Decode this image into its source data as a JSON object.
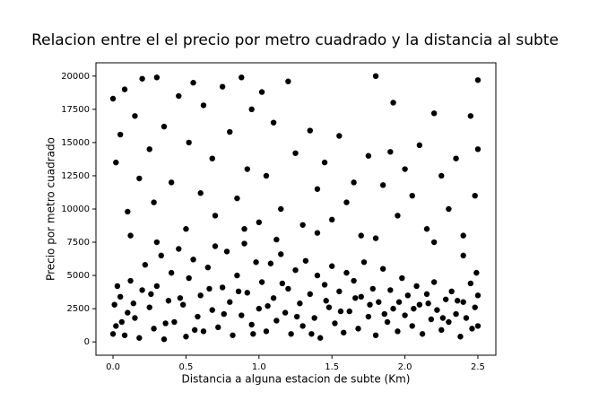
{
  "chart_data": {
    "type": "scatter",
    "title": "Relacion entre el el precio por metro cuadrado y la distancia al subte",
    "xlabel": "Distancia a alguna estacion de subte (Km)",
    "ylabel": "Precio por metro cuadrado",
    "color": "#000000",
    "xlim": [
      -0.117,
      2.623
    ],
    "ylim": [
      -1000,
      21000
    ],
    "xticks": [
      {
        "value": 0,
        "label": "0.0"
      },
      0.5,
      {
        "value": 1,
        "label": "1.0"
      },
      1.5,
      {
        "value": 2,
        "label": "2.0"
      },
      2.5
    ],
    "yticks": [
      0,
      2500,
      5000,
      7500,
      10000,
      12500,
      15000,
      17500,
      20000
    ],
    "x": [
      0.02,
      0.05,
      0.08,
      0.1,
      0.12,
      0.15,
      0.18,
      0.2,
      0.22,
      0.25,
      0.28,
      0.3,
      0.33,
      0.35,
      0.38,
      0.4,
      0.42,
      0.45,
      0.48,
      0.5,
      0.52,
      0.55,
      0.58,
      0.6,
      0.62,
      0.65,
      0.68,
      0.7,
      0.72,
      0.75,
      0.78,
      0.8,
      0.82,
      0.85,
      0.88,
      0.9,
      0.92,
      0.95,
      0.98,
      1.0,
      1.02,
      1.05,
      1.08,
      1.1,
      1.12,
      1.15,
      1.18,
      1.2,
      1.22,
      1.25,
      1.28,
      1.3,
      1.32,
      1.35,
      1.38,
      1.4,
      1.42,
      1.45,
      1.48,
      1.5,
      1.52,
      1.55,
      1.58,
      1.6,
      1.62,
      1.65,
      1.68,
      1.7,
      1.72,
      1.75,
      1.78,
      1.8,
      1.82,
      1.85,
      1.88,
      1.9,
      1.92,
      1.95,
      1.98,
      2.0,
      2.02,
      2.05,
      2.08,
      2.1,
      2.12,
      2.15,
      2.18,
      2.2,
      2.22,
      2.25,
      2.28,
      2.3,
      2.32,
      2.35,
      2.38,
      2.4,
      2.42,
      2.45,
      2.48,
      2.5,
      2.5,
      2.49,
      0.01,
      0.03,
      0.0,
      0.06,
      0.14,
      0.26,
      0.36,
      0.46,
      0.56,
      0.66,
      0.76,
      0.86,
      0.96,
      1.06,
      1.16,
      1.26,
      1.36,
      1.46,
      1.56,
      1.66,
      1.76,
      1.86,
      1.96,
      2.06,
      2.16,
      2.26,
      2.36,
      2.46,
      0.0,
      0.02,
      0.05,
      0.08,
      0.1,
      0.15,
      0.18,
      0.2,
      0.25,
      0.28,
      0.3,
      0.35,
      0.4,
      0.45,
      0.5,
      0.52,
      0.55,
      0.6,
      0.62,
      0.68,
      0.7,
      0.75,
      0.8,
      0.85,
      0.88,
      0.92,
      0.95,
      1.0,
      1.02,
      1.05,
      1.1,
      1.15,
      1.2,
      1.25,
      1.3,
      1.35,
      1.4,
      1.45,
      1.5,
      1.55,
      1.6,
      1.65,
      1.7,
      1.75,
      1.8,
      1.85,
      1.9,
      1.92,
      1.95,
      2.0,
      2.05,
      2.1,
      2.15,
      2.2,
      2.25,
      2.3,
      2.35,
      2.4,
      2.45,
      2.5,
      2.5,
      2.48,
      2.4,
      2.2,
      1.8,
      1.4,
      0.12,
      0.3,
      0.9,
      1.12
    ],
    "values": [
      1200,
      3400,
      500,
      2200,
      4600,
      1800,
      300,
      3900,
      5800,
      2600,
      1000,
      4200,
      6500,
      200,
      3100,
      5200,
      1500,
      7000,
      2800,
      400,
      4800,
      6200,
      1900,
      3500,
      800,
      5600,
      2400,
      7200,
      1100,
      4100,
      6800,
      3000,
      500,
      5000,
      2000,
      7400,
      3700,
      1300,
      6000,
      2500,
      4500,
      800,
      5900,
      3300,
      1600,
      6600,
      2200,
      4000,
      600,
      5400,
      2900,
      1200,
      6100,
      3600,
      1800,
      5000,
      300,
      4300,
      2600,
      5700,
      1400,
      3800,
      700,
      5200,
      2300,
      4600,
      1000,
      3400,
      6000,
      1900,
      4000,
      500,
      3000,
      5500,
      1500,
      3900,
      2500,
      800,
      4800,
      2000,
      3500,
      1200,
      4200,
      2800,
      600,
      3600,
      1700,
      4500,
      2400,
      900,
      3200,
      1500,
      3800,
      2100,
      400,
      3000,
      1800,
      4400,
      2600,
      1200,
      3500,
      5200,
      2800,
      4200,
      600,
      1500,
      2900,
      3600,
      1400,
      3300,
      900,
      4000,
      2100,
      3800,
      600,
      2700,
      4400,
      1900,
      600,
      3100,
      2300,
      3300,
      2800,
      2100,
      3000,
      2500,
      2900,
      1800,
      3100,
      1000,
      18300,
      13500,
      15600,
      19000,
      9800,
      17000,
      12300,
      19800,
      14500,
      10500,
      19900,
      16200,
      12000,
      18500,
      8500,
      15000,
      19500,
      11200,
      17800,
      13800,
      9500,
      19200,
      15800,
      10800,
      19900,
      13000,
      17500,
      9000,
      18800,
      12500,
      16500,
      10000,
      19600,
      14200,
      8800,
      15900,
      11500,
      13500,
      9200,
      15500,
      10500,
      12000,
      8000,
      14000,
      20000,
      11800,
      14300,
      18000,
      9500,
      13000,
      11000,
      14800,
      8500,
      17200,
      12500,
      10000,
      13800,
      8000,
      17000,
      19700,
      14500,
      11000,
      6500,
      7500,
      7800,
      8200,
      8000,
      7500,
      8500,
      7700
    ]
  }
}
